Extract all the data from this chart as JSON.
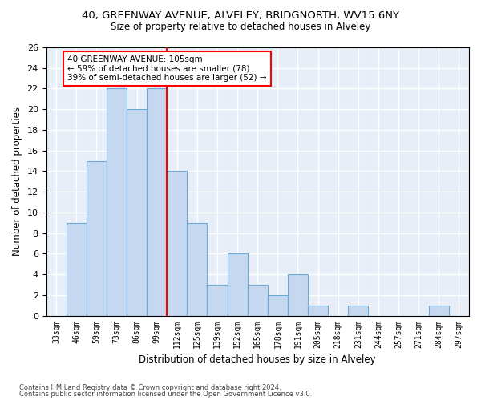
{
  "title1": "40, GREENWAY AVENUE, ALVELEY, BRIDGNORTH, WV15 6NY",
  "title2": "Size of property relative to detached houses in Alveley",
  "xlabel": "Distribution of detached houses by size in Alveley",
  "ylabel": "Number of detached properties",
  "categories": [
    "33sqm",
    "46sqm",
    "59sqm",
    "73sqm",
    "86sqm",
    "99sqm",
    "112sqm",
    "125sqm",
    "139sqm",
    "152sqm",
    "165sqm",
    "178sqm",
    "191sqm",
    "205sqm",
    "218sqm",
    "231sqm",
    "244sqm",
    "257sqm",
    "271sqm",
    "284sqm",
    "297sqm"
  ],
  "values": [
    0,
    9,
    15,
    22,
    20,
    22,
    14,
    9,
    3,
    6,
    3,
    2,
    4,
    1,
    0,
    1,
    0,
    0,
    0,
    1,
    0
  ],
  "bar_color": "#c5d8f0",
  "bar_edge_color": "#6aaad4",
  "annotation_line1": "40 GREENWAY AVENUE: 105sqm",
  "annotation_line2": "← 59% of detached houses are smaller (78)",
  "annotation_line3": "39% of semi-detached houses are larger (52) →",
  "ylim": [
    0,
    26
  ],
  "yticks": [
    0,
    2,
    4,
    6,
    8,
    10,
    12,
    14,
    16,
    18,
    20,
    22,
    24,
    26
  ],
  "footnote1": "Contains HM Land Registry data © Crown copyright and database right 2024.",
  "footnote2": "Contains public sector information licensed under the Open Government Licence v3.0.",
  "background_color": "#e8eef8"
}
